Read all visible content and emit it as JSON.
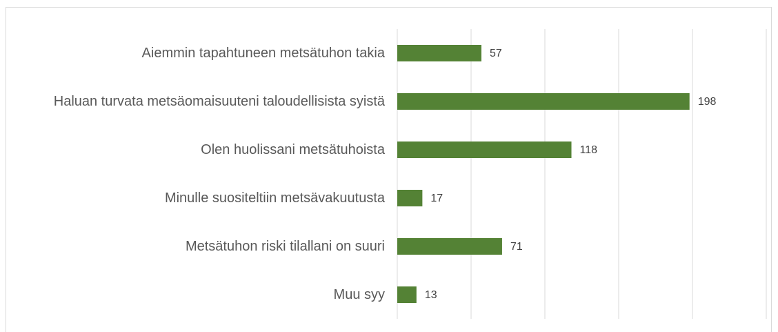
{
  "chart_data": {
    "type": "bar",
    "orientation": "horizontal",
    "categories": [
      "Aiemmin tapahtuneen metsätuhon takia",
      "Haluan turvata metsäomaisuuteni taloudellisista syistä",
      "Olen huolissani metsätuhoista",
      "Minulle suositeltiin metsävakuutusta",
      "Metsätuhon riski tilallani on suuri",
      "Muu syy"
    ],
    "values": [
      57,
      198,
      118,
      17,
      71,
      13
    ],
    "color": "#548235",
    "xlim": [
      0,
      250
    ],
    "xticks": [
      0,
      50,
      100,
      150,
      200,
      250
    ],
    "grid": true
  }
}
